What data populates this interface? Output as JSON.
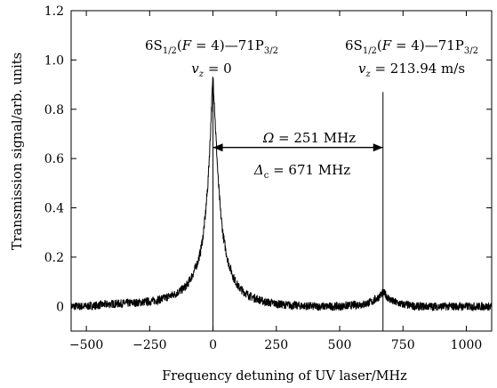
{
  "chart_data": {
    "type": "line",
    "xlabel": "Frequency detuning of UV laser/MHz",
    "ylabel": "Transmission signal/arb. units",
    "xlim": [
      -560,
      1100
    ],
    "ylim": [
      -0.1,
      1.2
    ],
    "x_ticks": [
      -500,
      -250,
      0,
      250,
      500,
      750,
      1000
    ],
    "x_tick_labels": [
      "−500",
      "−250",
      "0",
      "250",
      "500",
      "750",
      "1000"
    ],
    "y_ticks": [
      0,
      0.2,
      0.4,
      0.6,
      0.8,
      1.0,
      1.2
    ],
    "y_tick_labels": [
      "0",
      "0.2",
      "0.4",
      "0.6",
      "0.8",
      "1.0",
      "1.2"
    ],
    "grid": false,
    "legend": "none",
    "series": [
      {
        "x": [
          -560,
          -500,
          -400,
          -300,
          -250,
          -200,
          -150,
          -120,
          -100,
          -80,
          -60,
          -50,
          -40,
          -30,
          -20,
          -10,
          -5,
          0,
          5,
          10,
          20,
          30,
          40,
          50,
          60,
          80,
          100,
          120,
          150,
          200,
          250,
          300,
          400,
          500,
          550,
          600,
          630,
          650,
          665,
          672,
          680,
          690,
          710,
          740,
          800,
          900,
          1000,
          1100
        ],
        "y": [
          0.0,
          0.0,
          0.01,
          0.015,
          0.02,
          0.03,
          0.05,
          0.07,
          0.09,
          0.13,
          0.18,
          0.22,
          0.28,
          0.37,
          0.5,
          0.7,
          0.83,
          0.93,
          0.84,
          0.72,
          0.52,
          0.38,
          0.29,
          0.23,
          0.18,
          0.12,
          0.08,
          0.06,
          0.04,
          0.02,
          0.01,
          0.005,
          0.0,
          0.0,
          0.005,
          0.01,
          0.02,
          0.035,
          0.05,
          0.055,
          0.05,
          0.035,
          0.02,
          0.01,
          0.0,
          0.0,
          0.0,
          0.0
        ]
      }
    ],
    "markers": [
      {
        "x": 0,
        "y_top": 0.93
      },
      {
        "x": 671,
        "y_top": 0.87
      }
    ],
    "arrow": {
      "x_from": 0,
      "x_to": 671,
      "y": 0.645
    },
    "annotations": {
      "peak1_level": "6S1/2(F = 4)—71P3/2",
      "peak1_velocity": "vz = 0",
      "peak2_level": "6S1/2(F = 4)—71P3/2",
      "peak2_velocity": "vz = 213.94 m/s",
      "omega": "Ω = 251 MHz",
      "delta": "Δc = 671 MHz"
    }
  }
}
